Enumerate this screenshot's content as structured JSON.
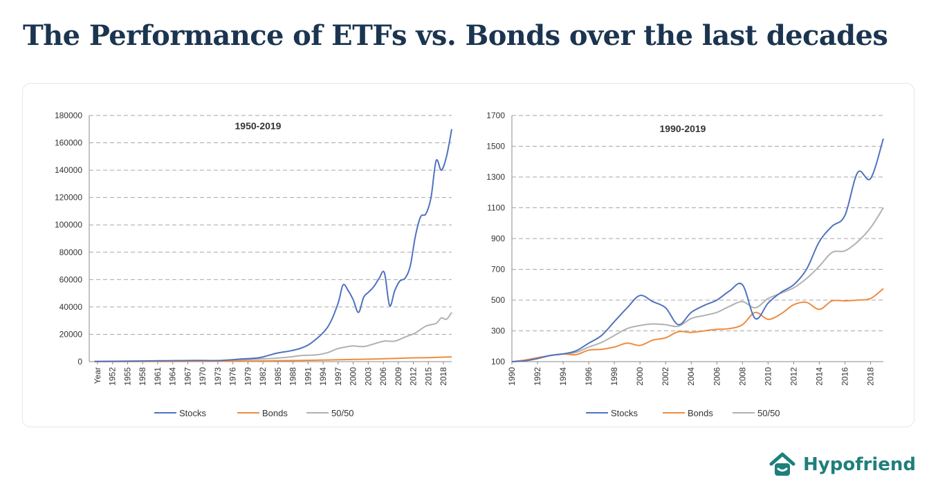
{
  "page": {
    "title": "The Performance of ETFs vs. Bonds over the last decades"
  },
  "brand": {
    "name": "Hypofriend",
    "icon": "house-smile-icon",
    "color": "#1f7f7a"
  },
  "colors": {
    "stocks": "#4f72be",
    "bonds": "#ed8b3f",
    "fifty": "#b1b1b1",
    "grid": "#a6a6a6"
  },
  "chart_data": [
    {
      "type": "line",
      "title": "1950-2019",
      "x_tick_labels": [
        "Year",
        "1952",
        "1955",
        "1958",
        "1961",
        "1964",
        "1967",
        "1970",
        "1973",
        "1976",
        "1979",
        "1982",
        "1985",
        "1988",
        "1991",
        "1994",
        "1997",
        "2000",
        "2003",
        "2006",
        "2009",
        "2012",
        "2015",
        "2018"
      ],
      "y_ticks": [
        "0",
        "20000",
        "40000",
        "60000",
        "80000",
        "100000",
        "120000",
        "140000",
        "160000",
        "180000"
      ],
      "ylim": [
        0,
        180000
      ],
      "xlim": [
        1949,
        2019
      ],
      "grid": true,
      "legend_position": "bottom",
      "series": [
        {
          "name": "Stocks",
          "color": "#4f72be",
          "x": [
            1950,
            1955,
            1960,
            1965,
            1970,
            1974,
            1978,
            1982,
            1985,
            1988,
            1990,
            1992,
            1995,
            1997,
            1998,
            1999,
            2000,
            2001,
            2002,
            2003,
            2004,
            2005,
            2006,
            2007,
            2008,
            2009,
            2010,
            2011,
            2012,
            2013,
            2014,
            2015,
            2016,
            2017,
            2018,
            2019
          ],
          "y": [
            100,
            300,
            500,
            700,
            900,
            800,
            1800,
            3000,
            6000,
            8000,
            10000,
            14000,
            25000,
            42000,
            56000,
            52000,
            45000,
            36000,
            47000,
            51000,
            55000,
            61000,
            65000,
            41000,
            52000,
            59000,
            61000,
            70000,
            92000,
            106000,
            108000,
            120000,
            147000,
            140000,
            150000,
            170000
          ]
        },
        {
          "name": "Bonds",
          "color": "#ed8b3f",
          "x": [
            1950,
            1960,
            1970,
            1980,
            1985,
            1990,
            1995,
            2000,
            2005,
            2010,
            2015,
            2019
          ],
          "y": [
            50,
            100,
            200,
            400,
            600,
            900,
            1200,
            1600,
            2000,
            2600,
            3000,
            3500
          ]
        },
        {
          "name": "50/50",
          "color": "#b1b1b1",
          "x": [
            1950,
            1960,
            1970,
            1975,
            1980,
            1985,
            1988,
            1990,
            1993,
            1995,
            1997,
            1999,
            2000,
            2002,
            2004,
            2006,
            2008,
            2010,
            2012,
            2014,
            2016,
            2017,
            2018,
            2019
          ],
          "y": [
            100,
            300,
            500,
            800,
            1500,
            2500,
            3500,
            4500,
            5000,
            6500,
            9500,
            11000,
            11500,
            11000,
            13000,
            15000,
            15000,
            18000,
            21000,
            26000,
            28000,
            32000,
            31000,
            36000
          ]
        }
      ]
    },
    {
      "type": "line",
      "title": "1990-2019",
      "x_tick_labels": [
        "1990",
        "1992",
        "1994",
        "1996",
        "1998",
        "2000",
        "2002",
        "2004",
        "2006",
        "2008",
        "2010",
        "2012",
        "2014",
        "2016",
        "2018"
      ],
      "y_ticks": [
        "100",
        "300",
        "500",
        "700",
        "900",
        "1100",
        "1300",
        "1500",
        "1700"
      ],
      "ylim": [
        100,
        1700
      ],
      "xlim": [
        1990,
        2019
      ],
      "grid": true,
      "legend_position": "bottom",
      "series": [
        {
          "name": "Stocks",
          "color": "#4f72be",
          "x": [
            1990,
            1991,
            1992,
            1993,
            1994,
            1995,
            1996,
            1997,
            1998,
            1999,
            2000,
            2001,
            2002,
            2003,
            2004,
            2005,
            2006,
            2007,
            2008,
            2009,
            2010,
            2011,
            2012,
            2013,
            2014,
            2015,
            2016,
            2017,
            2018,
            2019
          ],
          "y": [
            100,
            105,
            120,
            140,
            150,
            170,
            220,
            270,
            360,
            450,
            530,
            490,
            450,
            340,
            420,
            465,
            500,
            560,
            600,
            380,
            480,
            550,
            600,
            700,
            880,
            980,
            1050,
            1330,
            1290,
            1550
          ]
        },
        {
          "name": "Bonds",
          "color": "#ed8b3f",
          "x": [
            1990,
            1991,
            1992,
            1993,
            1994,
            1995,
            1996,
            1997,
            1998,
            1999,
            2000,
            2001,
            2002,
            2003,
            2004,
            2005,
            2006,
            2007,
            2008,
            2009,
            2010,
            2011,
            2012,
            2013,
            2014,
            2015,
            2016,
            2017,
            2018,
            2019
          ],
          "y": [
            100,
            110,
            125,
            140,
            150,
            145,
            175,
            180,
            195,
            220,
            205,
            240,
            255,
            295,
            290,
            300,
            310,
            315,
            340,
            420,
            375,
            410,
            470,
            485,
            440,
            495,
            495,
            500,
            510,
            575
          ]
        },
        {
          "name": "50/50",
          "color": "#b1b1b1",
          "x": [
            1990,
            1991,
            1992,
            1993,
            1994,
            1995,
            1996,
            1997,
            1998,
            1999,
            2000,
            2001,
            2002,
            2003,
            2004,
            2005,
            2006,
            2007,
            2008,
            2009,
            2010,
            2011,
            2012,
            2013,
            2014,
            2015,
            2016,
            2017,
            2018,
            2019
          ],
          "y": [
            100,
            108,
            125,
            140,
            150,
            160,
            195,
            225,
            270,
            315,
            335,
            345,
            340,
            330,
            380,
            400,
            420,
            460,
            490,
            450,
            510,
            545,
            580,
            640,
            720,
            810,
            820,
            880,
            970,
            1100
          ]
        }
      ]
    }
  ]
}
